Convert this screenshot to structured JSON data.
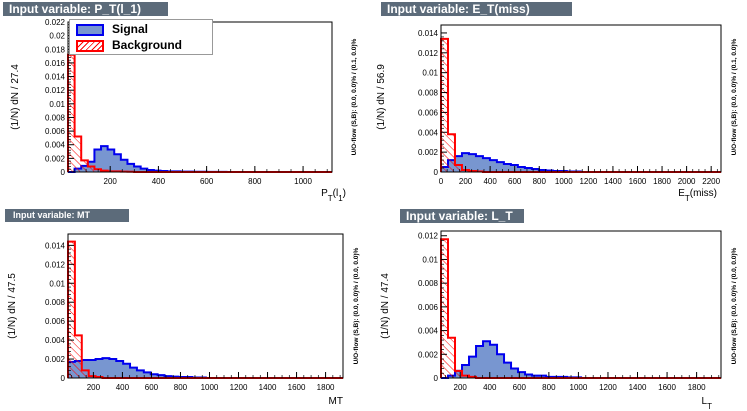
{
  "colors": {
    "signal_fill": "#7896d0",
    "signal_line": "#0000ee",
    "background_line": "#ff0000",
    "title_bg": "#5c6b7a"
  },
  "legend": {
    "signal": "Signal",
    "background": "Background"
  },
  "chart_data": [
    {
      "type": "bar",
      "title": "Input variable: P_T(l_1)",
      "xlabel": "P_T(l_1)",
      "ylabel": "(1/N) dN / 27.4",
      "overflow_label": "U/O-flow (S,B): (0.0, 0.0)% / (0.1, 0.0)%",
      "xlim": [
        25,
        1120
      ],
      "ylim": [
        0,
        0.022
      ],
      "xticks": [
        200,
        400,
        600,
        800,
        1000
      ],
      "yticks": [
        0,
        0.002,
        0.004,
        0.006,
        0.008,
        0.01,
        0.012,
        0.014,
        0.016,
        0.018,
        0.02,
        0.022
      ],
      "ytick_labels": [
        "0",
        "0.002",
        "0.004",
        "0.006",
        "0.008",
        "0.01",
        "0.012",
        "0.014",
        "0.016",
        "0.018",
        "0.02",
        "0.022"
      ],
      "bin_width": 27.4,
      "series": [
        {
          "name": "Signal",
          "values": [
            0.0,
            0.0005,
            0.0009,
            0.0015,
            0.0033,
            0.0038,
            0.0033,
            0.0026,
            0.0018,
            0.0012,
            0.0008,
            0.0005,
            0.0003,
            0.0002,
            0.00015,
            0.0001,
            0.0001,
            5e-05,
            5e-05,
            3e-05,
            3e-05,
            2e-05,
            2e-05,
            1e-05
          ]
        },
        {
          "name": "Background",
          "values": [
            0.0172,
            0.0052,
            0.0017,
            0.0008,
            0.0004,
            0.0002,
            0.0001,
            0.0001,
            5e-05,
            3e-05
          ]
        }
      ]
    },
    {
      "type": "bar",
      "title": "Input variable: E_T(miss)",
      "xlabel": "E_T(miss)",
      "ylabel": "(1/N) dN / 56.9",
      "overflow_label": "U/O-flow (S,B): (0.0, 0.0)% / (0.1, 0.0)%",
      "xlim": [
        0,
        2280
      ],
      "ylim": [
        0,
        0.0148
      ],
      "xticks": [
        0,
        200,
        400,
        600,
        800,
        1000,
        1200,
        1400,
        1600,
        1800,
        2000,
        2200
      ],
      "yticks": [
        0,
        0.002,
        0.004,
        0.006,
        0.008,
        0.01,
        0.012,
        0.014
      ],
      "ytick_labels": [
        "0",
        "0.002",
        "0.004",
        "0.006",
        "0.008",
        "0.01",
        "0.012",
        "0.014"
      ],
      "bin_width": 56.9,
      "series": [
        {
          "name": "Signal",
          "values": [
            0.0005,
            0.0012,
            0.0016,
            0.0019,
            0.0018,
            0.0016,
            0.0014,
            0.0012,
            0.001,
            0.0008,
            0.0007,
            0.0005,
            0.0004,
            0.0003,
            0.0002,
            0.00015,
            0.0001,
            0.0001,
            5e-05,
            5e-05
          ]
        },
        {
          "name": "Background",
          "values": [
            0.0134,
            0.0038,
            0.0007,
            0.0002,
            0.0001,
            5e-05
          ]
        }
      ]
    },
    {
      "type": "bar",
      "title": "Input variable: MT",
      "xlabel": "MT",
      "ylabel": "(1/N) dN / 47.5",
      "overflow_label": "U/O-flow (S,B): (0.0, 0.0)% / (0.0, 0.0)%",
      "xlim": [
        25,
        1920
      ],
      "ylim": [
        0,
        0.0152
      ],
      "xticks": [
        200,
        400,
        600,
        800,
        1000,
        1200,
        1400,
        1600,
        1800
      ],
      "yticks": [
        0,
        0.002,
        0.004,
        0.006,
        0.008,
        0.01,
        0.012,
        0.014
      ],
      "ytick_labels": [
        "0",
        "0.002",
        "0.004",
        "0.006",
        "0.008",
        "0.01",
        "0.012",
        "0.014"
      ],
      "bin_width": 47.5,
      "series": [
        {
          "name": "Signal",
          "values": [
            0.0017,
            0.0018,
            0.0019,
            0.0019,
            0.002,
            0.0021,
            0.002,
            0.0018,
            0.0015,
            0.0011,
            0.0008,
            0.0006,
            0.0004,
            0.0003,
            0.0002,
            0.00015,
            0.0001,
            0.0001,
            5e-05,
            5e-05
          ]
        },
        {
          "name": "Background",
          "values": [
            0.0144,
            0.0045,
            0.0008,
            0.0002,
            0.0001
          ]
        }
      ]
    },
    {
      "type": "bar",
      "title": "Input variable: L_T",
      "xlabel": "L_T",
      "ylabel": "(1/N) dN / 47.4",
      "overflow_label": "U/O-flow (S,B): (0.0, 0.0)% / (0.0, 0.0)%",
      "xlim": [
        70,
        1965
      ],
      "ylim": [
        0,
        0.0124
      ],
      "xticks": [
        200,
        400,
        600,
        800,
        1000,
        1200,
        1400,
        1600,
        1800
      ],
      "yticks": [
        0,
        0.002,
        0.004,
        0.006,
        0.008,
        0.01,
        0.012
      ],
      "ytick_labels": [
        "0",
        "0.002",
        "0.004",
        "0.006",
        "0.008",
        "0.01",
        "0.012"
      ],
      "bin_width": 47.4,
      "series": [
        {
          "name": "Signal",
          "values": [
            0.0,
            0.0002,
            0.0006,
            0.0011,
            0.0018,
            0.0027,
            0.0031,
            0.0028,
            0.002,
            0.0013,
            0.0008,
            0.0005,
            0.0003,
            0.0002,
            0.0002,
            0.0001,
            0.0001,
            0.0001,
            5e-05,
            5e-05
          ]
        },
        {
          "name": "Background",
          "values": [
            0.0117,
            0.0034,
            0.0006,
            0.0002,
            0.0001
          ]
        }
      ]
    }
  ]
}
